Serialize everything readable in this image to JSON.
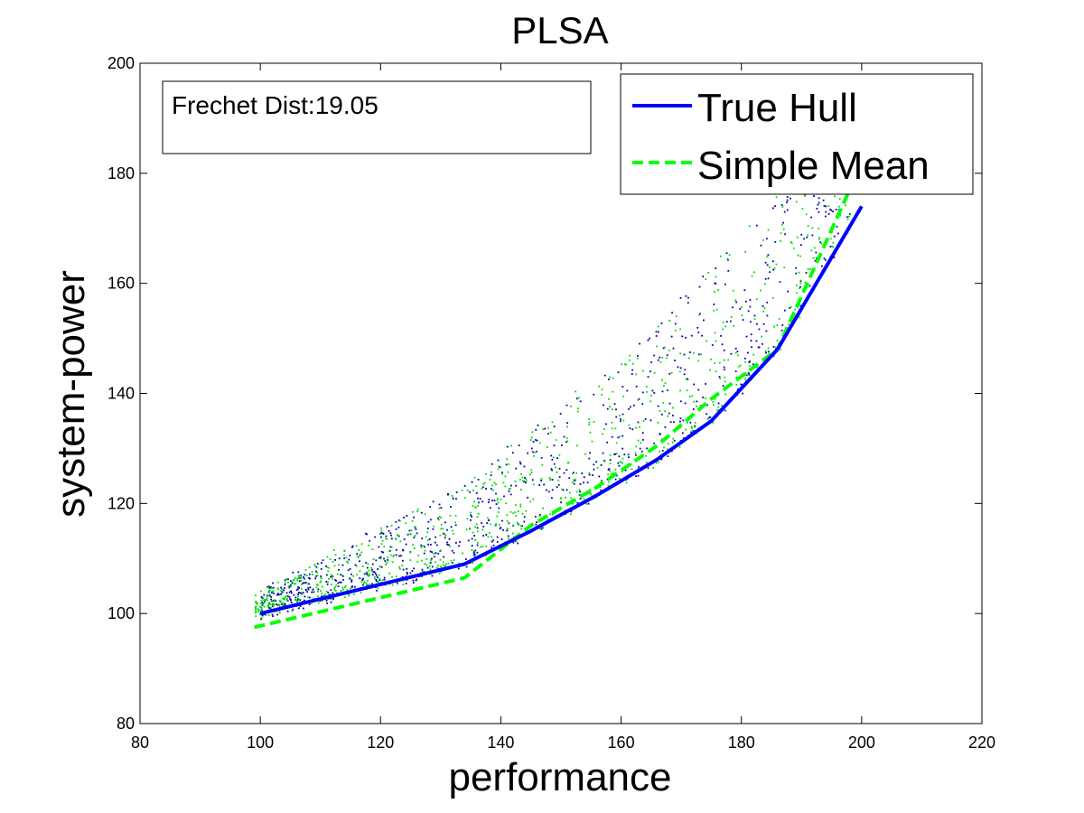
{
  "chart_data": {
    "type": "scatter",
    "title": "PLSA",
    "xlabel": "performance",
    "ylabel": "system-power",
    "xlim": [
      80,
      220
    ],
    "ylim": [
      80,
      200
    ],
    "xticks": [
      "80",
      "100",
      "120",
      "140",
      "160",
      "180",
      "200",
      "220"
    ],
    "yticks": [
      "80",
      "100",
      "120",
      "140",
      "160",
      "180",
      "200"
    ],
    "annotation": "Frechet Dist:19.05",
    "legend": {
      "placement": "top-right",
      "entries": [
        "True Hull",
        "Simple Mean"
      ]
    },
    "colors": {
      "true_hull": "#0000ff",
      "simple_mean": "#00ff00",
      "blue_points": "#0000aa",
      "green_points": "#00dd00"
    },
    "series": [
      {
        "name": "True Hull",
        "style": "solid",
        "x": [
          100,
          134,
          145,
          156,
          166,
          175,
          186,
          200
        ],
        "y": [
          100,
          109,
          115,
          121.5,
          128,
          135,
          148,
          174
        ]
      },
      {
        "name": "Simple Mean",
        "style": "dashed",
        "x": [
          99,
          101,
          134,
          145,
          156,
          166,
          175,
          186,
          198
        ],
        "y": [
          97.5,
          98,
          106.5,
          116,
          123,
          130.5,
          139,
          148,
          177
        ]
      }
    ],
    "scatter_clouds": [
      {
        "color_key": "blue_points",
        "count": 900,
        "x_range": [
          100,
          198
        ],
        "y_range": [
          100,
          180
        ]
      },
      {
        "color_key": "green_points",
        "count": 900,
        "x_range": [
          99,
          198
        ],
        "y_range": [
          98,
          182
        ]
      }
    ]
  }
}
